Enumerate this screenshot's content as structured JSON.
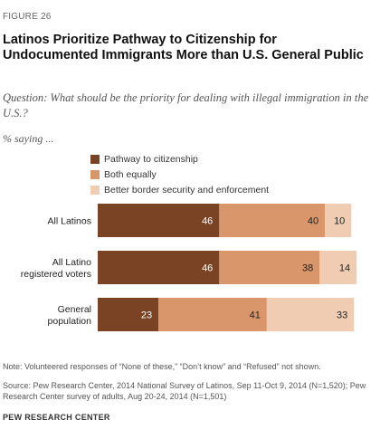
{
  "figure_label": "FIGURE 26",
  "question": "Question: What should be the priority for dealing with illegal immigration in the U.S.?",
  "saying": "% saying ...",
  "note": "Note: Volunteered responses of “None of these,” “Don’t know” and “Refused” not shown.",
  "source": "Source: Pew Research Center, 2014 National Survey of Latinos, Sep 11-Oct 9, 2014 (N=1,520); Pew Research Center survey of adults, Aug 20-24, 2014 (N=1,501)",
  "organization": "PEW RESEARCH CENTER",
  "chart_data": {
    "type": "bar",
    "orientation": "horizontal",
    "stacked": true,
    "title": "Latinos Prioritize Pathway to Citizenship for Undocumented Immigrants More than U.S. General Public",
    "legend_position": "top",
    "categories": [
      [
        "All Latinos"
      ],
      [
        "All Latino",
        "registered voters"
      ],
      [
        "General",
        "population"
      ]
    ],
    "series": [
      {
        "name": "Pathway to citizenship",
        "color": "#7a4424",
        "label_color": "#ffffff",
        "values": [
          46,
          46,
          23
        ]
      },
      {
        "name": "Both equally",
        "color": "#d9966a",
        "label_color": "#222222",
        "values": [
          40,
          38,
          41
        ]
      },
      {
        "name": "Better border security and enforcement",
        "color": "#f0cdb2",
        "label_color": "#222222",
        "values": [
          10,
          14,
          33
        ]
      }
    ],
    "xlim": [
      0,
      100
    ],
    "grid": false
  }
}
